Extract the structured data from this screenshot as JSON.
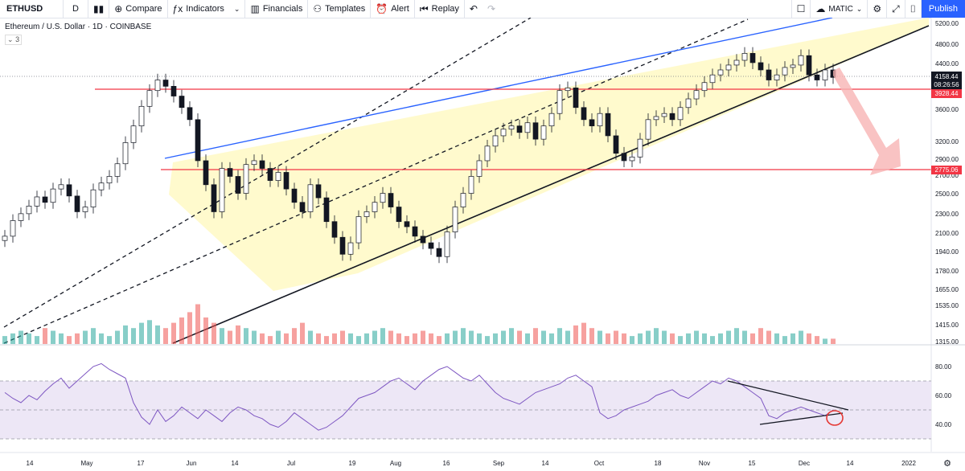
{
  "toolbar": {
    "symbol": "ETHUSD",
    "interval": "D",
    "compare_label": "Compare",
    "indicators_label": "Indicators",
    "financials_label": "Financials",
    "templates_label": "Templates",
    "alert_label": "Alert",
    "replay_label": "Replay",
    "watch_symbol": "MATIC",
    "publish_label": "Publish"
  },
  "legend": {
    "title": "Ethereum / U.S. Dollar · 1D · COINBASE",
    "count": "3"
  },
  "price_axis": {
    "ticks": [
      "5200.00",
      "4800.00",
      "4400.00",
      "3600.00",
      "3200.00",
      "2900.00",
      "2700.00",
      "2500.00",
      "2300.00",
      "2100.00",
      "1940.00",
      "1780.00",
      "1655.00",
      "1535.00",
      "1415.00",
      "1315.00"
    ],
    "current_price": "4158.44",
    "countdown": "08:26:56",
    "level_high": "3928.44",
    "level_low": "2775.06"
  },
  "rsi_axis": {
    "ticks": [
      "80.00",
      "60.00",
      "40.00"
    ]
  },
  "time_axis": {
    "labels": [
      "14",
      "May",
      "17",
      "Jun",
      "14",
      "Jul",
      "19",
      "Aug",
      "16",
      "Sep",
      "14",
      "Oct",
      "18",
      "Nov",
      "15",
      "Dec",
      "14",
      "2022"
    ]
  },
  "colors": {
    "up": "#26a69a",
    "down": "#ef5350",
    "channel_fill": "#fff9c4",
    "resistance": "#2962ff",
    "horizontal": "#f23645",
    "arrow": "#f8a5a5",
    "rsi": "#7e57c2",
    "rsi_band": "#ede7f6"
  },
  "chart_data": {
    "type": "candlestick",
    "price_series": [
      1960,
      2110,
      2180,
      2260,
      2360,
      2300,
      2450,
      2500,
      2370,
      2200,
      2250,
      2440,
      2520,
      2600,
      2760,
      3050,
      3300,
      3620,
      3900,
      4100,
      3980,
      3800,
      3600,
      3400,
      2800,
      2500,
      2200,
      2700,
      2600,
      2400,
      2750,
      2800,
      2700,
      2550,
      2650,
      2450,
      2300,
      2200,
      2500,
      2350,
      2100,
      1950,
      1800,
      1900,
      2150,
      2200,
      2300,
      2400,
      2250,
      2100,
      2050,
      1960,
      1900,
      1850,
      1780,
      2000,
      2250,
      2400,
      2600,
      2800,
      3000,
      3150,
      3250,
      3300,
      3200,
      3350,
      3100,
      3300,
      3500,
      3900,
      3950,
      3600,
      3400,
      3300,
      3500,
      3150,
      2900,
      2800,
      2850,
      3100,
      3400,
      3450,
      3500,
      3400,
      3600,
      3750,
      3900,
      4050,
      4200,
      4300,
      4400,
      4500,
      4650,
      4450,
      4300,
      4100,
      4200,
      4350,
      4400,
      4600,
      4200,
      4100,
      4300,
      4150
    ],
    "volume_series": [
      3,
      4,
      5,
      4,
      3,
      6,
      5,
      4,
      3,
      4,
      5,
      6,
      4,
      3,
      5,
      7,
      6,
      8,
      9,
      7,
      6,
      8,
      10,
      12,
      15,
      10,
      8,
      6,
      5,
      7,
      6,
      5,
      4,
      3,
      5,
      4,
      6,
      8,
      5,
      4,
      3,
      4,
      5,
      4,
      3,
      4,
      5,
      6,
      5,
      4,
      3,
      4,
      5,
      4,
      3,
      4,
      5,
      6,
      5,
      4,
      3,
      4,
      5,
      6,
      5,
      4,
      6,
      5,
      4,
      6,
      5,
      7,
      8,
      6,
      5,
      4,
      5,
      4,
      3,
      4,
      5,
      6,
      5,
      4,
      3,
      4,
      5,
      4,
      3,
      4,
      5,
      6,
      5,
      4,
      6,
      5,
      4,
      3,
      4,
      5,
      4,
      3,
      2,
      2
    ],
    "rsi_series": [
      62,
      58,
      55,
      60,
      57,
      63,
      68,
      72,
      65,
      70,
      75,
      80,
      82,
      78,
      75,
      72,
      55,
      45,
      40,
      50,
      42,
      46,
      52,
      48,
      44,
      50,
      46,
      42,
      48,
      52,
      50,
      46,
      44,
      40,
      38,
      42,
      48,
      44,
      40,
      36,
      38,
      42,
      46,
      52,
      58,
      60,
      62,
      66,
      70,
      72,
      68,
      64,
      70,
      74,
      78,
      80,
      76,
      72,
      70,
      74,
      68,
      62,
      58,
      56,
      54,
      58,
      62,
      64,
      66,
      68,
      72,
      74,
      70,
      66,
      48,
      44,
      46,
      50,
      52,
      54,
      56,
      60,
      62,
      64,
      60,
      58,
      62,
      66,
      70,
      68,
      72,
      70,
      66,
      62,
      58,
      46,
      44,
      48,
      50,
      52,
      50,
      48,
      46,
      50
    ],
    "rsi_levels": [
      70,
      50,
      30
    ]
  }
}
